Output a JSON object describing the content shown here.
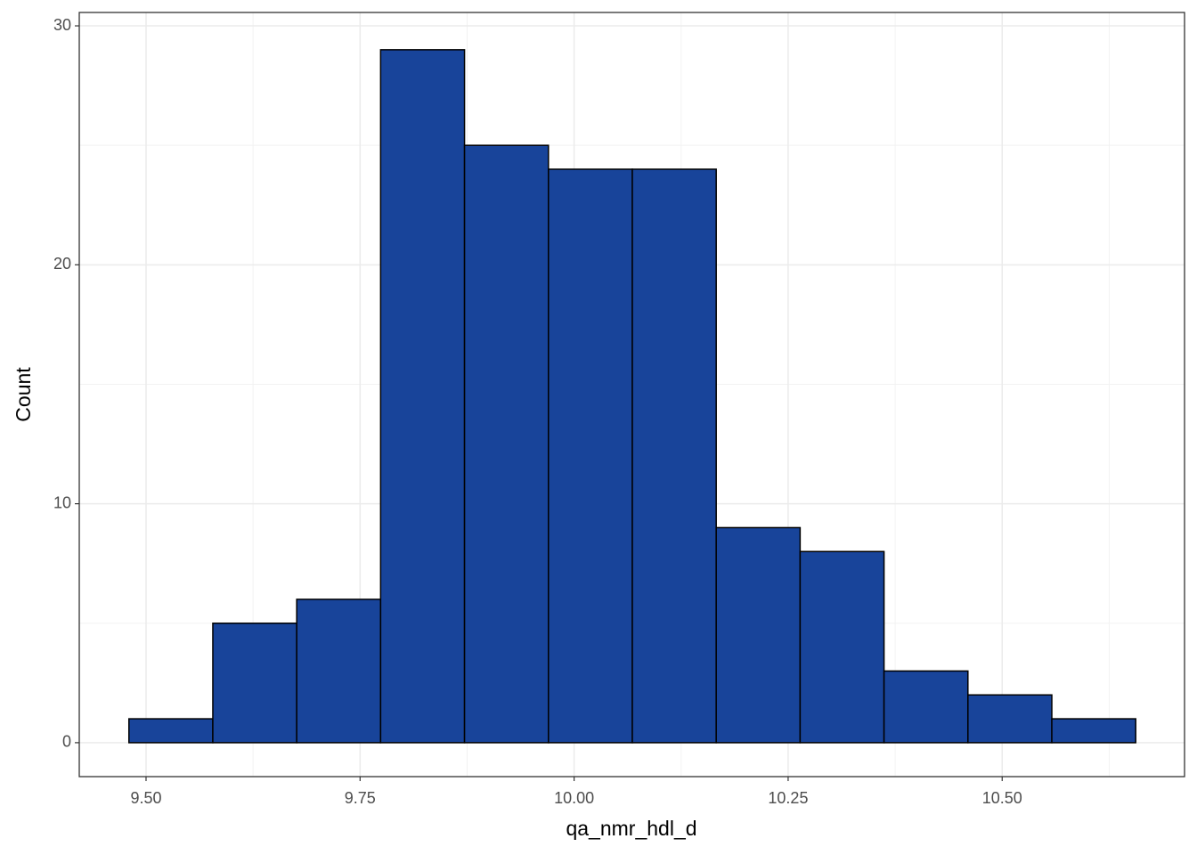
{
  "chart_data": {
    "type": "histogram",
    "x_label": "qa_nmr_hdl_d",
    "y_label": "Count",
    "bins": [
      9.48,
      9.578,
      9.676,
      9.774,
      9.872,
      9.97,
      10.068,
      10.166,
      10.264,
      10.362,
      10.46,
      10.558,
      10.656
    ],
    "values": [
      1,
      5,
      6,
      29,
      25,
      24,
      24,
      9,
      8,
      3,
      2,
      1
    ],
    "color": "#18449a",
    "edge_color": "#000000",
    "xlim": [
      9.422,
      10.713
    ],
    "ylim": [
      -1.42,
      30.56
    ],
    "xticks": [
      {
        "value": 9.5,
        "label": "9.50"
      },
      9.75,
      {
        "value": 10,
        "label": "10.00"
      },
      10.25,
      {
        "value": 10.5,
        "label": "10.50"
      }
    ],
    "yticks": [
      0,
      10,
      20,
      30
    ],
    "minor_xticks": [
      9.625,
      9.875,
      10.125,
      10.375,
      10.625
    ],
    "minor_yticks": [
      5,
      15,
      25
    ],
    "grid": true
  }
}
